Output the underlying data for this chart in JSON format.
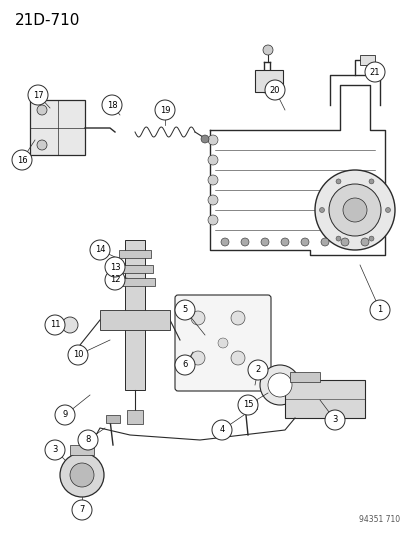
{
  "title": "21D-710",
  "footer": "94351 710",
  "bg_color": "#ffffff",
  "lc": "#2a2a2a",
  "fig_width": 4.14,
  "fig_height": 5.33,
  "dpi": 100
}
